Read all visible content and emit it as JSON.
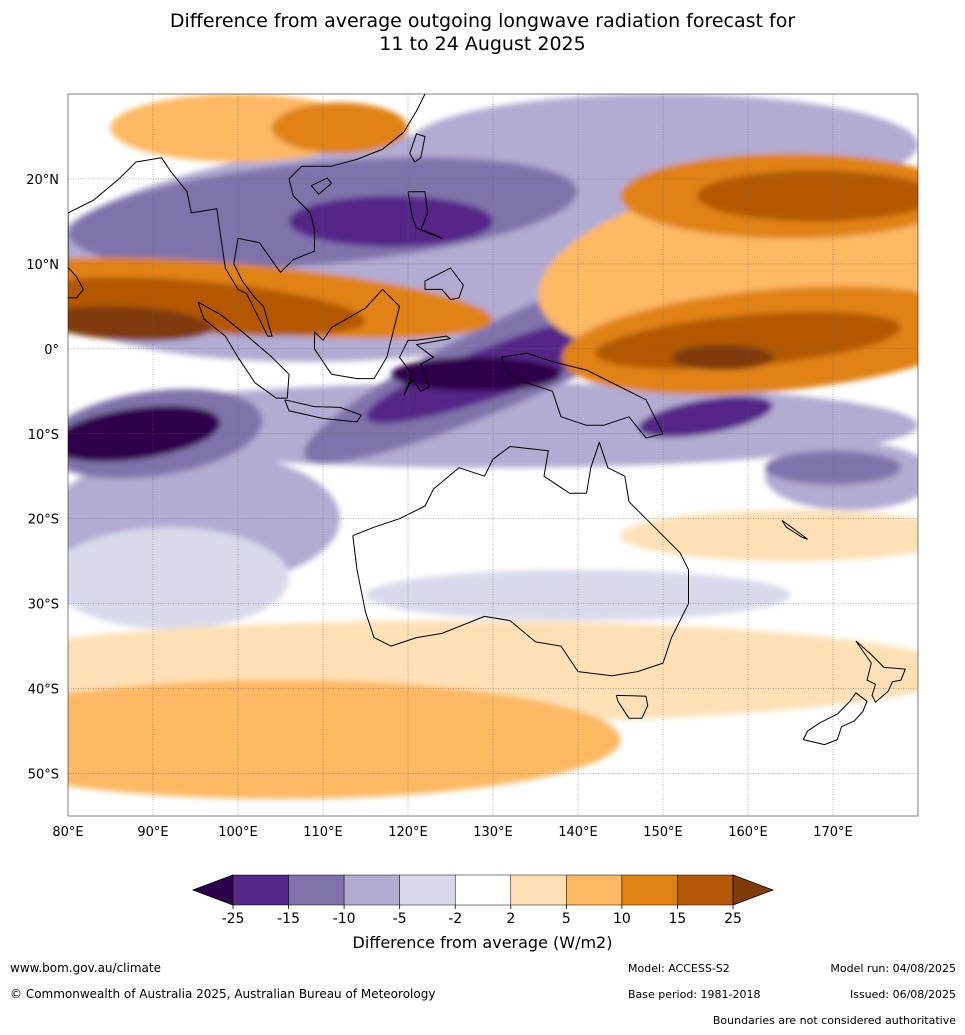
{
  "title": {
    "line1": "Difference from average outgoing longwave radiation forecast for",
    "line2": "11 to 24 August 2025"
  },
  "map": {
    "lon_range": [
      80,
      180
    ],
    "lat_range": [
      -55,
      30
    ],
    "lon_ticks": [
      "80°E",
      "90°E",
      "100°E",
      "110°E",
      "120°E",
      "130°E",
      "140°E",
      "150°E",
      "160°E",
      "170°E"
    ],
    "lat_ticks": [
      {
        "lat": 20,
        "label": "20°N"
      },
      {
        "lat": 10,
        "label": "10°N"
      },
      {
        "lat": 0,
        "label": "0°"
      },
      {
        "lat": -10,
        "label": "10°S"
      },
      {
        "lat": -20,
        "label": "20°S"
      },
      {
        "lat": -30,
        "label": "30°S"
      },
      {
        "lat": -40,
        "label": "40°S"
      },
      {
        "lat": -50,
        "label": "50°S"
      }
    ]
  },
  "colorbar": {
    "ticks": [
      "-25",
      "-15",
      "-10",
      "-5",
      "-2",
      "2",
      "5",
      "10",
      "15",
      "25"
    ],
    "colors": [
      "#2d004b",
      "#542788",
      "#8073ac",
      "#b2abd2",
      "#d8daeb",
      "#ffffff",
      "#fee0b6",
      "#fdb863",
      "#e08214",
      "#b35806",
      "#7f3b08"
    ],
    "label": "Difference from average (W/m2)"
  },
  "footer": {
    "website": "www.bom.gov.au/climate",
    "copyright": "© Commonwealth of Australia 2025, Australian Bureau of Meteorology",
    "model": "Model: ACCESS-S2",
    "base_period": "Base period: 1981-2018",
    "model_run": "Model run: 04/08/2025",
    "issued": "Issued: 06/08/2025",
    "disclaimer": "Boundaries are not considered authoritative"
  }
}
